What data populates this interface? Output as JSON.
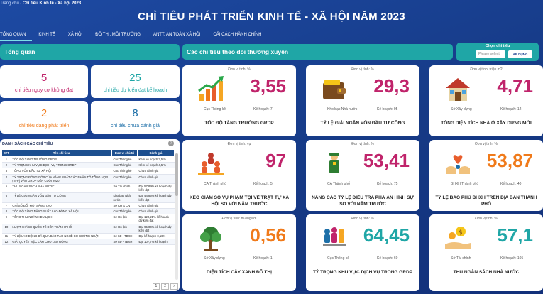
{
  "breadcrumb": {
    "home": "Trang chủ",
    "sep": " / ",
    "current": "Chỉ tiêu Kinh tế - Xã hội 2023"
  },
  "title": "CHỈ TIÊU PHÁT TRIỂN KINH TẾ - XÃ HỘI NĂM 2023",
  "tabs": [
    "TỔNG QUAN",
    "KINH TẾ",
    "XÃ HỘI",
    "ĐÔ THỊ, MÔI TRƯỜNG",
    "ANTT, AN TOÀN XÃ HỘI",
    "CẢI CÁCH HÀNH CHÍNH"
  ],
  "overview": {
    "title": "Tổng quan",
    "stats": [
      {
        "num": "5",
        "label": "chỉ tiêu nguy cơ không đạt",
        "color": "#c0246b"
      },
      {
        "num": "25",
        "label": "chỉ tiêu dự kiến đạt kế hoạch",
        "color": "#1fa6a6"
      },
      {
        "num": "2",
        "label": "chỉ tiêu đang phát triển",
        "color": "#f07a1a"
      },
      {
        "num": "8",
        "label": "chỉ tiêu chưa đánh giá",
        "color": "#1d6fa8"
      }
    ]
  },
  "regular": {
    "title": "Các chỉ tiêu theo dõi thường xuyên"
  },
  "select": {
    "title": "Chọn chỉ tiêu",
    "placeholder": "Please select",
    "button": "ÁP DỤNG"
  },
  "list": {
    "title": "DANH SÁCH CÁC CHỈ TIÊU",
    "help": "?",
    "headers": [
      "STT",
      "Tên chỉ tiêu",
      "Đơn vị chủ trì",
      "Đánh giá"
    ],
    "rows": [
      [
        "1",
        "TỐC ĐỘ TĂNG TRƯỞNG GRDP",
        "Cục Thống kê",
        "Kém kế hoạch 3,5 %"
      ],
      [
        "2",
        "TỶ TRỌNG KHU VỰC DỊCH VỤ TRONG GRDP",
        "Cục Thống kê",
        "Kém kế hoạch 4,5 %"
      ],
      [
        "3",
        "TỔNG VỐN ĐẦU TƯ XÃ HỘI",
        "Cục Thống kê",
        "Chưa đánh giá"
      ],
      [
        "4",
        "TỶ TRỌNG ĐÓNG GÓP CỦA NĂNG SUẤT CÁC NHÂN TỐ TỔNG HỢP (TFP) VÀO GRDP ĐẾN CUỐI 2020",
        "Cục Thống kê",
        "Chưa đánh giá"
      ],
      [
        "5",
        "THU NGÂN SÁCH NHÀ NƯỚC",
        "Sở Tài chính",
        "Đạt 57,89% kế hoạch dự kiến đạt"
      ],
      [
        "6",
        "TỶ LỆ GIẢI NGÂN VỐN ĐẦU TƯ CÔNG",
        "Kho bạc Nhà nước",
        "Đạt 44,85% kế hoạch dự kiến đạt"
      ],
      [
        "7",
        "CHỈ SỐ ĐỔI MỚI SÁNG TẠO",
        "Sở KH & CN",
        "Chưa đánh giá"
      ],
      [
        "8",
        "TỐC ĐỘ TĂNG NĂNG SUẤT LAO ĐỘNG XÃ HỘI",
        "Cục Thống kê",
        "Chưa đánh giá"
      ],
      [
        "9",
        "TỔNG THU NGÀNH DU LỊCH",
        "Sở Du lịch",
        "Đạt 120,21% kế hoạch dự kiến đạt"
      ],
      [
        "10",
        "LƯỢT KHÁCH QUỐC TẾ ĐẾN THÀNH PHỐ",
        "Sở Du lịch",
        "Đạt 95,06% kế hoạch dự kiến đạt"
      ],
      [
        "11",
        "TỶ LỆ LAO ĐỘNG ĐÃ QUA ĐÀO TẠO NGHỀ CÓ CHỨNG NHẬN",
        "Sở LĐ - TBXH",
        "Đạt kế hoạch 0,16%"
      ],
      [
        "12",
        "GIẢI QUYẾT VIỆC LÀM CHO LAO ĐỘNG",
        "Sở LĐ - TBXH",
        "Đạt 107,7% kế hoạch"
      ]
    ],
    "pages": [
      "1",
      "2",
      ">"
    ]
  },
  "cards": [
    {
      "unit": "Đơn vị tính: %",
      "value": "3,55",
      "src": "Cục Thống kê",
      "plan": "Kế hoạch: 7",
      "name": "TỐC ĐỘ TĂNG TRƯỞNG GRDP",
      "color": "#c0246b",
      "icon": "growth-chart-icon"
    },
    {
      "unit": "Đơn vị tính: %",
      "value": "29,3",
      "src": "Kho bạc Nhà nước",
      "plan": "Kế hoạch: 95",
      "name": "TỶ LỆ GIẢI NGÂN VỐN ĐẦU TƯ CÔNG",
      "color": "#c0246b",
      "icon": "wallet-icon"
    },
    {
      "unit": "Đơn vị tính: triệu m2",
      "value": "4,71",
      "src": "Sở Xây dựng",
      "plan": "Kế hoạch: 12",
      "name": "TỔNG DIỆN TÍCH NHÀ Ở XÂY DỰNG MỚI",
      "color": "#c0246b",
      "icon": "house-icon"
    },
    {
      "unit": "Đơn vị tính: vụ",
      "value": "97",
      "src": "CA Thành phố",
      "plan": "Kế hoạch: 5",
      "name": "KÉO GIẢM SỐ VỤ PHẠM TỘI VỀ TRẬT TỰ XÃ HỘI SO VỚI NĂM TRƯỚC",
      "color": "#c0246b",
      "icon": "people-icon"
    },
    {
      "unit": "Đơn vị tính: %",
      "value": "53,41",
      "src": "CA Thành phố",
      "plan": "Kế hoạch: 75",
      "name": "NÂNG CAO TỶ LỆ ĐIỀU TRA PHÁ ÁN HÌNH SỰ SO VỚI NĂM TRƯỚC",
      "color": "#c0246b",
      "icon": "police-icon"
    },
    {
      "unit": "Đơn vị tính: %",
      "value": "53,87",
      "src": "BHXH Thành phố",
      "plan": "Kế hoạch: 40",
      "name": "TỶ LỆ BAO PHỦ BHXH TRÊN ĐỊA BÀN THÀNH PHỐ",
      "color": "#f07a1a",
      "icon": "care-hands-icon"
    },
    {
      "unit": "Đơn vị tính: m2/người",
      "value": "0,56",
      "src": "Sở Xây dựng",
      "plan": "Kế hoạch: 1",
      "name": "DIỆN TÍCH CÂY XANH ĐÔ THỊ",
      "color": "#f07a1a",
      "icon": "tree-icon"
    },
    {
      "unit": "Đơn vị tính: %",
      "value": "64,45",
      "src": "Cục Thống kê",
      "plan": "Kế hoạch: 60",
      "name": "TỶ TRỌNG KHU VỰC DỊCH VỤ TRONG GRDP",
      "color": "#1fa6a6",
      "icon": "service-people-icon"
    },
    {
      "unit": "Đơn vị tính: %",
      "value": "57,1",
      "src": "Sở Tài chính",
      "plan": "Kế hoạch: 105",
      "name": "THU NGÂN SÁCH NHÀ NƯỚC",
      "color": "#1fa6a6",
      "icon": "money-hand-icon"
    }
  ]
}
